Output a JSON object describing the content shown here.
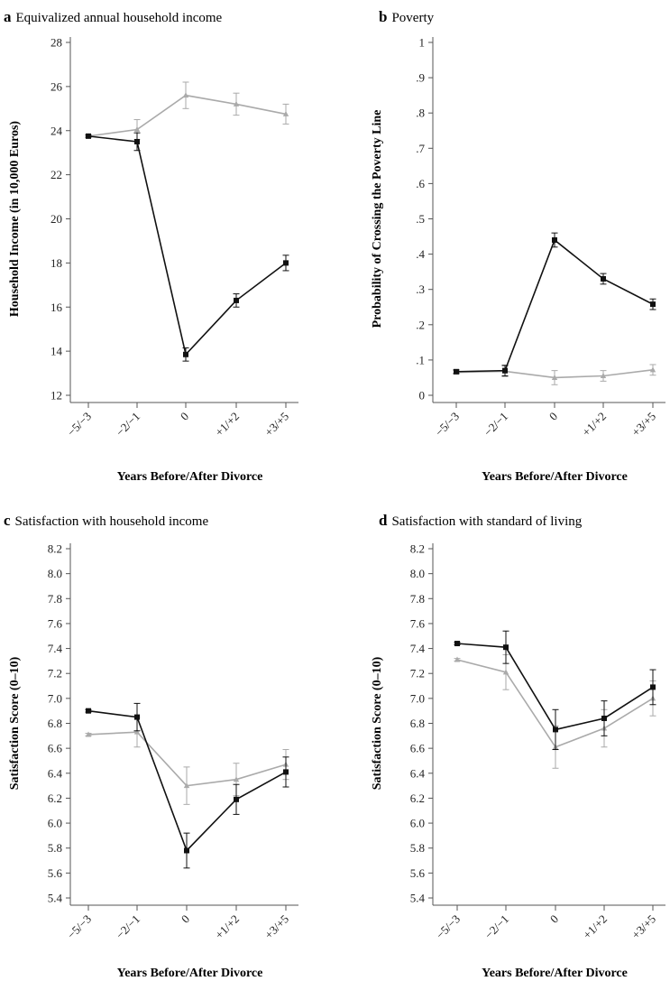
{
  "colors": {
    "series_black": "#111111",
    "series_gray": "#aaaaaa",
    "axis": "#555555"
  },
  "chart_data": [
    {
      "type": "line",
      "letter": "a",
      "title": "Equivalized annual household income",
      "xlabel": "Years Before/After Divorce",
      "ylabel": "Household Income (in 10,000 Euros)",
      "categories": [
        "−5/−3",
        "−2/−1",
        "0",
        "+1/+2",
        "+3/+5"
      ],
      "ylim": [
        12,
        28
      ],
      "yticks": [
        12,
        14,
        16,
        18,
        20,
        22,
        24,
        26,
        28
      ],
      "ytick_labels": [
        "12",
        "14",
        "16",
        "18",
        "20",
        "22",
        "24",
        "26",
        "28"
      ],
      "series": [
        {
          "color": "#aaaaaa",
          "marker": "triangle",
          "values": [
            23.75,
            24.05,
            25.6,
            25.2,
            24.75
          ],
          "errors": [
            0.05,
            0.45,
            0.6,
            0.5,
            0.45
          ]
        },
        {
          "color": "#111111",
          "marker": "square",
          "values": [
            23.75,
            23.5,
            13.85,
            16.3,
            18.0
          ],
          "errors": [
            0.05,
            0.4,
            0.3,
            0.3,
            0.35
          ]
        }
      ]
    },
    {
      "type": "line",
      "letter": "b",
      "title": "Poverty",
      "xlabel": "Years Before/After Divorce",
      "ylabel": "Probability of Crossing the Poverty Line",
      "categories": [
        "−5/−3",
        "−2/−1",
        "0",
        "+1/+2",
        "+3/+5"
      ],
      "ylim": [
        0,
        1
      ],
      "yticks": [
        0,
        0.1,
        0.2,
        0.3,
        0.4,
        0.5,
        0.6,
        0.7,
        0.8,
        0.9,
        1
      ],
      "ytick_labels": [
        "0",
        ".1",
        ".2",
        ".3",
        ".4",
        ".5",
        ".6",
        ".7",
        ".8",
        ".9",
        "1"
      ],
      "series": [
        {
          "color": "#aaaaaa",
          "marker": "triangle",
          "values": [
            0.065,
            0.068,
            0.05,
            0.055,
            0.072
          ],
          "errors": [
            0.005,
            0.015,
            0.02,
            0.015,
            0.015
          ]
        },
        {
          "color": "#111111",
          "marker": "square",
          "values": [
            0.067,
            0.07,
            0.44,
            0.33,
            0.258
          ],
          "errors": [
            0.005,
            0.015,
            0.02,
            0.015,
            0.015
          ]
        }
      ]
    },
    {
      "type": "line",
      "letter": "c",
      "title": "Satisfaction with household income",
      "xlabel": "Years Before/After Divorce",
      "ylabel": "Satisfaction Score (0–10)",
      "categories": [
        "−5/−3",
        "−2/−1",
        "0",
        "+1/+2",
        "+3/+5"
      ],
      "ylim": [
        5.4,
        8.2
      ],
      "yticks": [
        5.4,
        5.6,
        5.8,
        6.0,
        6.2,
        6.4,
        6.6,
        6.8,
        7.0,
        7.2,
        7.4,
        7.6,
        7.8,
        8.0,
        8.2
      ],
      "ytick_labels": [
        "5.4",
        "5.6",
        "5.8",
        "6.0",
        "6.2",
        "6.4",
        "6.6",
        "6.8",
        "7.0",
        "7.2",
        "7.4",
        "7.6",
        "7.8",
        "8.0",
        "8.2"
      ],
      "series": [
        {
          "color": "#aaaaaa",
          "marker": "triangle",
          "values": [
            6.71,
            6.73,
            6.3,
            6.35,
            6.47
          ],
          "errors": [
            0.01,
            0.12,
            0.15,
            0.13,
            0.12
          ]
        },
        {
          "color": "#111111",
          "marker": "square",
          "values": [
            6.9,
            6.85,
            5.78,
            6.19,
            6.41
          ],
          "errors": [
            0.01,
            0.11,
            0.14,
            0.12,
            0.12
          ]
        }
      ]
    },
    {
      "type": "line",
      "letter": "d",
      "title": "Satisfaction with standard of living",
      "xlabel": "Years Before/After Divorce",
      "ylabel": "Satisfaction Score (0–10)",
      "categories": [
        "−5/−3",
        "−2/−1",
        "0",
        "+1/+2",
        "+3/+5"
      ],
      "ylim": [
        5.4,
        8.2
      ],
      "yticks": [
        5.4,
        5.6,
        5.8,
        6.0,
        6.2,
        6.4,
        6.6,
        6.8,
        7.0,
        7.2,
        7.4,
        7.6,
        7.8,
        8.0,
        8.2
      ],
      "ytick_labels": [
        "5.4",
        "5.6",
        "5.8",
        "6.0",
        "6.2",
        "6.4",
        "6.6",
        "6.8",
        "7.0",
        "7.2",
        "7.4",
        "7.6",
        "7.8",
        "8.0",
        "8.2"
      ],
      "series": [
        {
          "color": "#aaaaaa",
          "marker": "triangle",
          "values": [
            7.31,
            7.21,
            6.61,
            6.76,
            7.0
          ],
          "errors": [
            0.01,
            0.14,
            0.17,
            0.15,
            0.14
          ]
        },
        {
          "color": "#111111",
          "marker": "square",
          "values": [
            7.44,
            7.41,
            6.75,
            6.84,
            7.09
          ],
          "errors": [
            0.01,
            0.13,
            0.16,
            0.14,
            0.14
          ]
        }
      ]
    }
  ]
}
